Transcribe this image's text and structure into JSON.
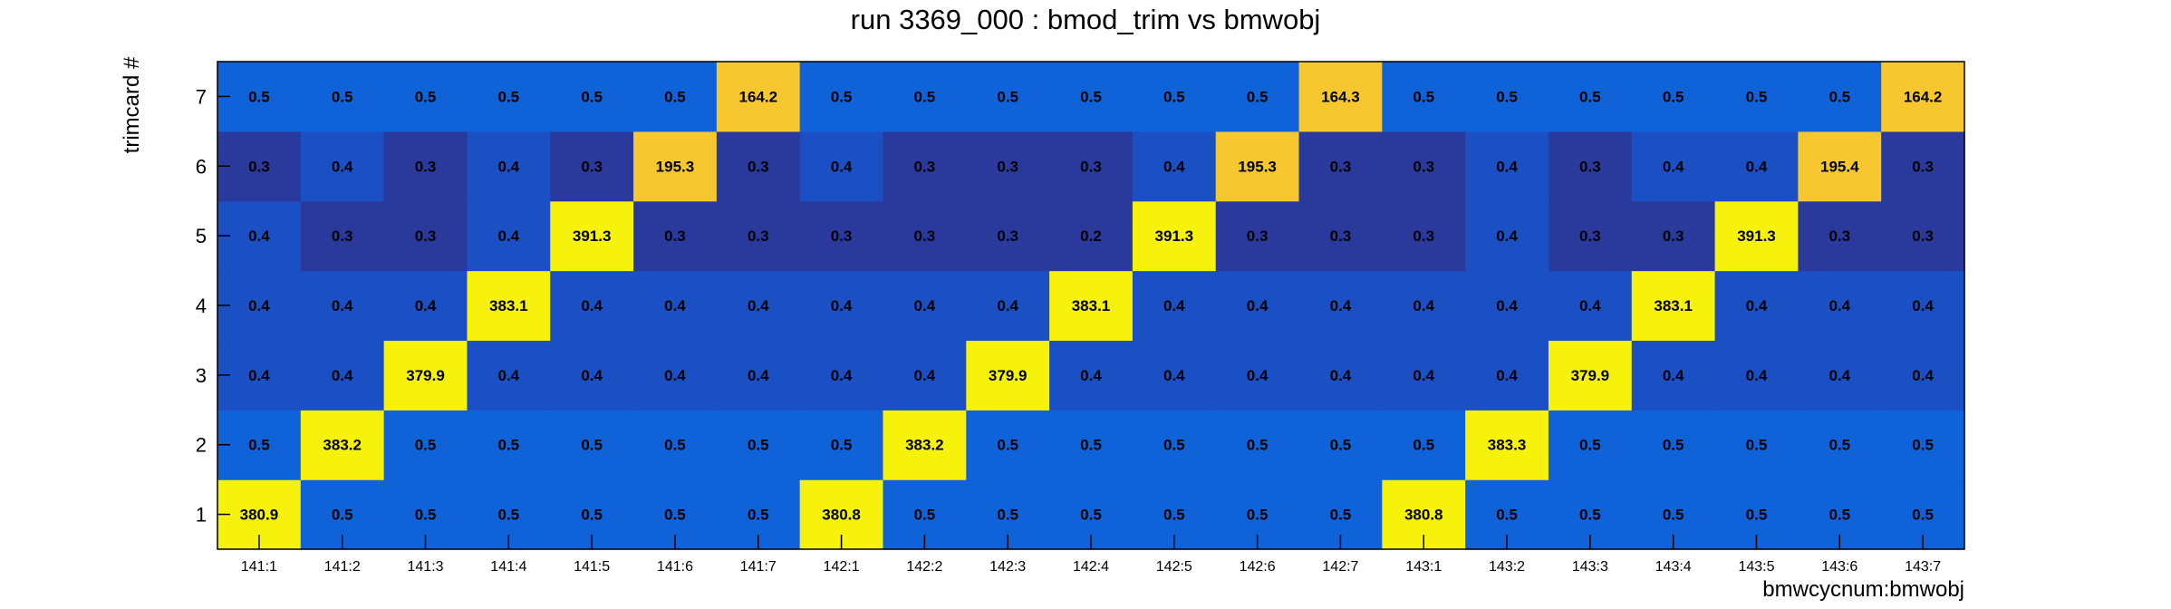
{
  "chart_data": {
    "type": "heatmap",
    "title": "run 3369_000 : bmod_trim vs bmwobj",
    "xlabel": "bmwcycnum:bmwobj",
    "ylabel": "trimcard #",
    "x_categories": [
      "141:1",
      "141:2",
      "141:3",
      "141:4",
      "141:5",
      "141:6",
      "141:7",
      "142:1",
      "142:2",
      "142:3",
      "142:4",
      "142:5",
      "142:6",
      "142:7",
      "143:1",
      "143:2",
      "143:3",
      "143:4",
      "143:5",
      "143:6",
      "143:7"
    ],
    "y_categories": [
      "1",
      "2",
      "3",
      "4",
      "5",
      "6",
      "7"
    ],
    "values": [
      [
        380.9,
        0.5,
        0.5,
        0.5,
        0.5,
        0.5,
        0.5,
        380.8,
        0.5,
        0.5,
        0.5,
        0.5,
        0.5,
        0.5,
        380.8,
        0.5,
        0.5,
        0.5,
        0.5,
        0.5,
        0.5
      ],
      [
        0.5,
        383.2,
        0.5,
        0.5,
        0.5,
        0.5,
        0.5,
        0.5,
        383.2,
        0.5,
        0.5,
        0.5,
        0.5,
        0.5,
        0.5,
        383.3,
        0.5,
        0.5,
        0.5,
        0.5,
        0.5
      ],
      [
        0.4,
        0.4,
        379.9,
        0.4,
        0.4,
        0.4,
        0.4,
        0.4,
        0.4,
        379.9,
        0.4,
        0.4,
        0.4,
        0.4,
        0.4,
        0.4,
        379.9,
        0.4,
        0.4,
        0.4,
        0.4
      ],
      [
        0.4,
        0.4,
        0.4,
        383.1,
        0.4,
        0.4,
        0.4,
        0.4,
        0.4,
        0.4,
        383.1,
        0.4,
        0.4,
        0.4,
        0.4,
        0.4,
        0.4,
        383.1,
        0.4,
        0.4,
        0.4
      ],
      [
        0.4,
        0.3,
        0.3,
        0.4,
        391.3,
        0.3,
        0.3,
        0.3,
        0.3,
        0.3,
        0.2,
        391.3,
        0.3,
        0.3,
        0.3,
        0.4,
        0.3,
        0.3,
        391.3,
        0.3,
        0.3
      ],
      [
        0.3,
        0.4,
        0.3,
        0.4,
        0.3,
        195.3,
        0.3,
        0.4,
        0.3,
        0.3,
        0.3,
        0.4,
        195.3,
        0.3,
        0.3,
        0.4,
        0.3,
        0.4,
        0.4,
        195.4,
        0.3
      ],
      [
        0.5,
        0.5,
        0.5,
        0.5,
        0.5,
        0.5,
        164.2,
        0.5,
        0.5,
        0.5,
        0.5,
        0.5,
        0.5,
        164.3,
        0.5,
        0.5,
        0.5,
        0.5,
        0.5,
        0.5,
        164.2
      ]
    ],
    "colors": {
      "background": "#ffffff",
      "cell_low_dark": "#2a3a9c",
      "cell_low_mid": "#1b4fc4",
      "cell_low_light": "#0f62d8",
      "cell_mid_orange": "#f6c72e",
      "cell_high_yellow": "#f7f20c",
      "frame": "#000000"
    }
  }
}
